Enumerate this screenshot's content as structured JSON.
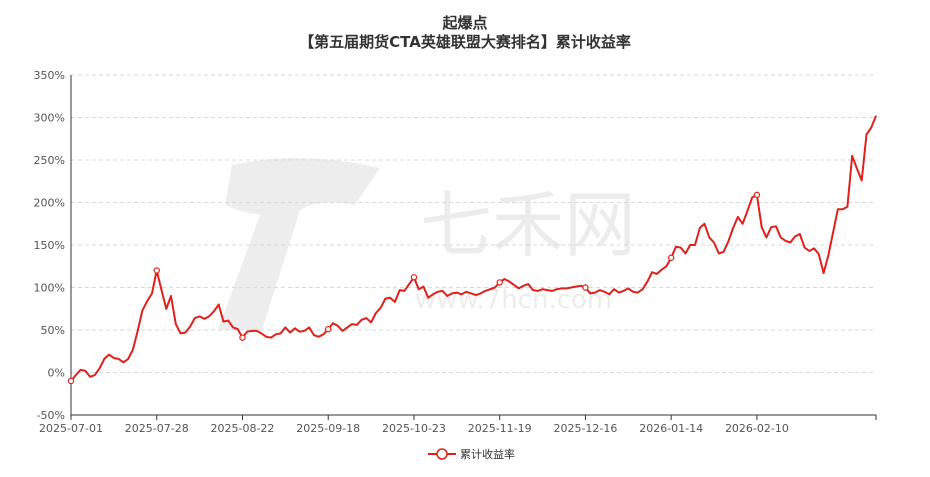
{
  "chart_data": {
    "type": "line",
    "title": "起爆点",
    "subtitle": "【第五届期货CTA英雄联盟大赛排名】累计收益率",
    "series_name": "累计收益率",
    "line_color": "#e0201a",
    "y_unit": "%",
    "ylim": [
      -50,
      350
    ],
    "y_ticks": [
      -50,
      0,
      50,
      100,
      150,
      200,
      250,
      300,
      350
    ],
    "x_tick_labels": [
      "2025-07-01",
      "2025-07-28",
      "2025-08-22",
      "2025-09-18",
      "2025-10-23",
      "2025-11-19",
      "2025-12-16",
      "2026-01-14",
      "2026-02-10"
    ],
    "x_tick_index": [
      0,
      18,
      36,
      54,
      72,
      90,
      108,
      126,
      144
    ],
    "grid": true,
    "legend_position": "bottom",
    "values": [
      -10,
      -3,
      3,
      2,
      -5,
      -3,
      5,
      16,
      21,
      17,
      16,
      12,
      16,
      27,
      49,
      73,
      84,
      93,
      120,
      97,
      75,
      90,
      57,
      46,
      47,
      54,
      64,
      66,
      63,
      66,
      72,
      80,
      60,
      61,
      53,
      51,
      41,
      48,
      49,
      49,
      46,
      42,
      41,
      45,
      46,
      53,
      47,
      52,
      48,
      49,
      53,
      44,
      42,
      45,
      51,
      58,
      55,
      49,
      53,
      57,
      56,
      62,
      64,
      59,
      70,
      76,
      87,
      88,
      83,
      97,
      96,
      104,
      112,
      98,
      101,
      88,
      92,
      95,
      96,
      90,
      93,
      94,
      92,
      95,
      93,
      91,
      93,
      96,
      98,
      100,
      106,
      110,
      107,
      103,
      99,
      102,
      104,
      97,
      96,
      98,
      97,
      96,
      98,
      99,
      99,
      100,
      101,
      102,
      100,
      93,
      94,
      97,
      95,
      92,
      98,
      94,
      96,
      99,
      95,
      94,
      98,
      107,
      118,
      116,
      121,
      125,
      135,
      148,
      147,
      140,
      150,
      150,
      170,
      175,
      159,
      153,
      140,
      142,
      154,
      170,
      183,
      175,
      190,
      206,
      209,
      171,
      159,
      171,
      172,
      159,
      155,
      153,
      160,
      163,
      147,
      143,
      146,
      139,
      117,
      138,
      165,
      192,
      192,
      195,
      255,
      240,
      226,
      280,
      288,
      302
    ],
    "marker_index": [
      0,
      18,
      36,
      54,
      72,
      90,
      108,
      126,
      144
    ]
  },
  "watermark": {
    "brand": "七禾网",
    "url": "www.7hcn.com"
  }
}
